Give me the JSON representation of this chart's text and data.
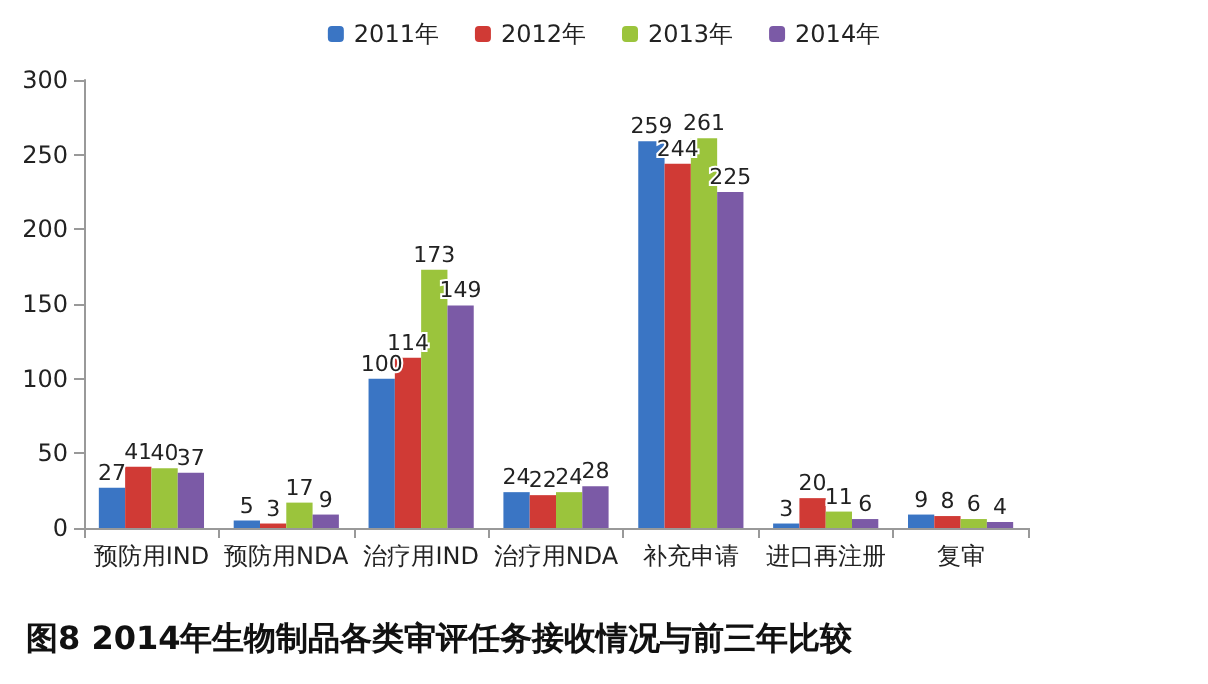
{
  "chart_data": {
    "type": "bar",
    "title": "图8 2014年生物制品各类审评任务接收情况与前三年比较",
    "categories": [
      "预防用IND",
      "预防用NDA",
      "治疗用IND",
      "治疗用NDA",
      "补充申请",
      "进口再注册",
      "复审"
    ],
    "series": [
      {
        "name": "2011年",
        "color": "#3a75c4",
        "values": [
          27,
          5,
          100,
          24,
          259,
          3,
          9
        ]
      },
      {
        "name": "2012年",
        "color": "#d03a35",
        "values": [
          41,
          3,
          114,
          22,
          244,
          20,
          8
        ]
      },
      {
        "name": "2013年",
        "color": "#9bc43c",
        "values": [
          40,
          17,
          173,
          24,
          261,
          11,
          6
        ]
      },
      {
        "name": "2014年",
        "color": "#7b5aa6",
        "values": [
          37,
          9,
          149,
          28,
          225,
          6,
          4
        ]
      }
    ],
    "ylim": [
      0,
      300
    ],
    "yticks": [
      0,
      50,
      100,
      150,
      200,
      250,
      300
    ],
    "grid": false,
    "legend": "top",
    "data_labels": true
  }
}
